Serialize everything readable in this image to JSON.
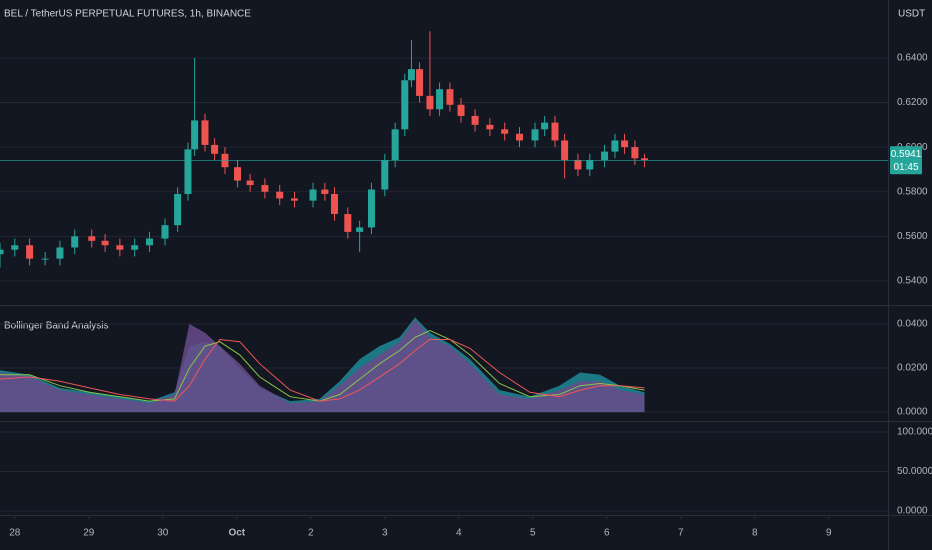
{
  "chart_data": [
    {
      "type": "candlestick",
      "title": "BEL / TetherUS PERPETUAL FUTURES, 1h, BINANCE",
      "unit": "USDT",
      "countdown": "01:45",
      "x": [
        -0.2,
        0,
        0.2,
        0.41,
        0.61,
        0.81,
        1.04,
        1.22,
        1.42,
        1.62,
        1.82,
        2.03,
        2.2,
        2.34,
        2.43,
        2.57,
        2.7,
        2.84,
        3.01,
        3.18,
        3.38,
        3.58,
        3.78,
        4.03,
        4.19,
        4.32,
        4.5,
        4.66,
        4.82,
        5.0,
        5.14,
        5.27,
        5.36,
        5.47,
        5.61,
        5.74,
        5.88,
        6.03,
        6.22,
        6.42,
        6.62,
        6.82,
        7.03,
        7.16,
        7.3,
        7.43,
        7.61,
        7.77,
        7.97,
        8.11,
        8.24,
        8.38,
        8.51
      ],
      "open": [
        0.552,
        0.554,
        0.556,
        0.55,
        0.55,
        0.555,
        0.56,
        0.558,
        0.556,
        0.554,
        0.556,
        0.559,
        0.565,
        0.579,
        0.599,
        0.612,
        0.601,
        0.597,
        0.591,
        0.585,
        0.583,
        0.58,
        0.577,
        0.576,
        0.581,
        0.579,
        0.57,
        0.562,
        0.564,
        0.581,
        0.594,
        0.608,
        0.63,
        0.635,
        0.623,
        0.617,
        0.626,
        0.619,
        0.614,
        0.61,
        0.608,
        0.606,
        0.603,
        0.608,
        0.611,
        0.603,
        0.594,
        0.59,
        0.594,
        0.598,
        0.603,
        0.6,
        0.595
      ],
      "high": [
        0.557,
        0.559,
        0.559,
        0.553,
        0.558,
        0.563,
        0.563,
        0.561,
        0.559,
        0.559,
        0.562,
        0.568,
        0.582,
        0.602,
        0.64,
        0.615,
        0.604,
        0.6,
        0.594,
        0.588,
        0.586,
        0.583,
        0.58,
        0.584,
        0.584,
        0.582,
        0.573,
        0.567,
        0.584,
        0.597,
        0.611,
        0.633,
        0.648,
        0.638,
        0.652,
        0.629,
        0.629,
        0.622,
        0.617,
        0.613,
        0.611,
        0.609,
        0.611,
        0.614,
        0.614,
        0.606,
        0.597,
        0.597,
        0.601,
        0.606,
        0.606,
        0.603,
        0.597
      ],
      "low": [
        0.546,
        0.551,
        0.547,
        0.547,
        0.547,
        0.552,
        0.555,
        0.553,
        0.551,
        0.551,
        0.553,
        0.556,
        0.562,
        0.576,
        0.596,
        0.598,
        0.594,
        0.588,
        0.582,
        0.58,
        0.577,
        0.574,
        0.573,
        0.573,
        0.576,
        0.567,
        0.559,
        0.553,
        0.561,
        0.578,
        0.591,
        0.605,
        0.627,
        0.62,
        0.614,
        0.614,
        0.616,
        0.611,
        0.607,
        0.605,
        0.603,
        0.6,
        0.6,
        0.605,
        0.6,
        0.586,
        0.587,
        0.587,
        0.591,
        0.595,
        0.597,
        0.592,
        0.591
      ],
      "close": [
        0.554,
        0.556,
        0.55,
        0.55,
        0.555,
        0.56,
        0.558,
        0.556,
        0.554,
        0.556,
        0.559,
        0.565,
        0.579,
        0.599,
        0.612,
        0.601,
        0.597,
        0.591,
        0.585,
        0.583,
        0.58,
        0.577,
        0.576,
        0.581,
        0.579,
        0.57,
        0.562,
        0.564,
        0.581,
        0.594,
        0.608,
        0.63,
        0.635,
        0.623,
        0.617,
        0.626,
        0.619,
        0.614,
        0.61,
        0.608,
        0.606,
        0.603,
        0.608,
        0.611,
        0.603,
        0.594,
        0.59,
        0.594,
        0.598,
        0.603,
        0.6,
        0.595,
        0.5941
      ],
      "up_color": "#26a69a",
      "down_color": "#ef5350",
      "grid": true,
      "xlim": [
        -0.2,
        11.8
      ],
      "xticks": [
        {
          "value": 0,
          "label": "28"
        },
        {
          "value": 1,
          "label": "29"
        },
        {
          "value": 2,
          "label": "30"
        },
        {
          "value": 3,
          "label": "Oct"
        },
        {
          "value": 4,
          "label": "2"
        },
        {
          "value": 5,
          "label": "3"
        },
        {
          "value": 6,
          "label": "4"
        },
        {
          "value": 7,
          "label": "5"
        },
        {
          "value": 8,
          "label": "6"
        },
        {
          "value": 9,
          "label": "7"
        },
        {
          "value": 10,
          "label": "8"
        },
        {
          "value": 11,
          "label": "9"
        }
      ],
      "ylim": [
        0.5292,
        0.666
      ],
      "yticks": [
        {
          "value": 0.54,
          "label": "0.5400"
        },
        {
          "value": 0.56,
          "label": "0.5600"
        },
        {
          "value": 0.58,
          "label": "0.5800"
        },
        {
          "value": 0.6,
          "label": "0.6000"
        },
        {
          "value": 0.62,
          "label": "0.6200"
        },
        {
          "value": 0.64,
          "label": "0.6400"
        }
      ]
    },
    {
      "type": "area-line",
      "title": "Bollinger Band Analysis",
      "x": [
        -0.2,
        0.2,
        0.61,
        1.01,
        1.42,
        1.82,
        2.16,
        2.36,
        2.57,
        2.77,
        3.04,
        3.31,
        3.72,
        4.12,
        4.39,
        4.66,
        4.93,
        5.2,
        5.41,
        5.61,
        5.88,
        6.15,
        6.55,
        6.96,
        7.36,
        7.64,
        7.91,
        8.18,
        8.51
      ],
      "series": [
        {
          "kind": "area",
          "color": "#1f8a96",
          "values": [
            0.019,
            0.017,
            0.011,
            0.009,
            0.007,
            0.005,
            0.009,
            0.03,
            0.032,
            0.03,
            0.02,
            0.011,
            0.005,
            0.006,
            0.014,
            0.024,
            0.03,
            0.034,
            0.043,
            0.036,
            0.031,
            0.024,
            0.01,
            0.007,
            0.012,
            0.018,
            0.017,
            0.012,
            0.009
          ]
        },
        {
          "kind": "area",
          "color": "#6a4a8a",
          "values": [
            0.018,
            0.016,
            0.01,
            0.008,
            0.006,
            0.004,
            0.008,
            0.04,
            0.036,
            0.03,
            0.022,
            0.012,
            0.004,
            0.005,
            0.012,
            0.02,
            0.026,
            0.032,
            0.042,
            0.034,
            0.03,
            0.022,
            0.008,
            0.006,
            0.01,
            0.014,
            0.014,
            0.01,
            0.008
          ]
        },
        {
          "kind": "line",
          "color": "#8bc34a",
          "values": [
            0.017,
            0.017,
            0.012,
            0.009,
            0.007,
            0.005,
            0.006,
            0.02,
            0.03,
            0.032,
            0.026,
            0.016,
            0.007,
            0.005,
            0.008,
            0.015,
            0.022,
            0.028,
            0.034,
            0.037,
            0.033,
            0.026,
            0.013,
            0.007,
            0.008,
            0.012,
            0.013,
            0.012,
            0.01
          ]
        },
        {
          "kind": "line",
          "color": "#f0565a",
          "values": [
            0.015,
            0.016,
            0.014,
            0.011,
            0.008,
            0.006,
            0.005,
            0.012,
            0.024,
            0.033,
            0.032,
            0.022,
            0.01,
            0.005,
            0.006,
            0.01,
            0.016,
            0.022,
            0.028,
            0.033,
            0.033,
            0.029,
            0.018,
            0.009,
            0.007,
            0.01,
            0.012,
            0.012,
            0.011
          ]
        }
      ],
      "ylim": [
        -0.0036,
        0.0482
      ],
      "yticks": [
        {
          "value": 0,
          "label": "0.0000"
        },
        {
          "value": 0.02,
          "label": "0.0200"
        },
        {
          "value": 0.04,
          "label": "0.0400"
        }
      ]
    },
    {
      "type": "empty",
      "ylim": [
        -5.1,
        112.7
      ],
      "yticks": [
        {
          "value": 0,
          "label": "0.0000"
        },
        {
          "value": 50,
          "label": "50.0000"
        },
        {
          "value": 100,
          "label": "100.0000"
        }
      ]
    }
  ]
}
